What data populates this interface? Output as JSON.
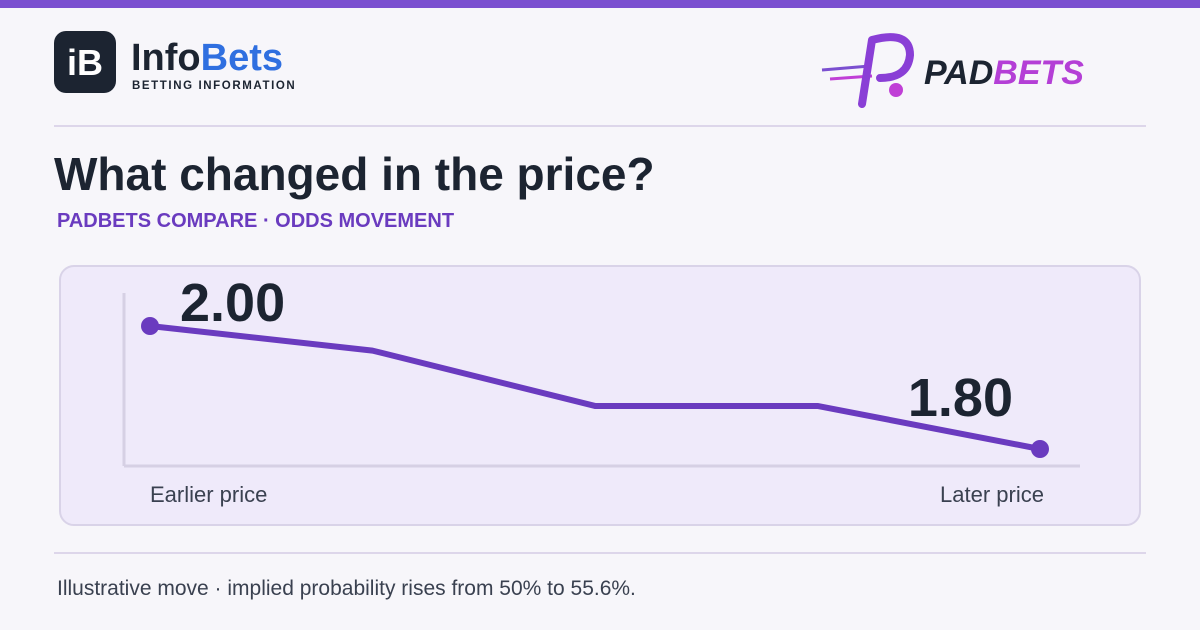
{
  "header": {
    "left_logo": {
      "icon": "iB",
      "name_part1": "Info",
      "name_part2": "Bets",
      "tagline": "BETTING INFORMATION"
    },
    "right_logo": {
      "name_part1": "PAD",
      "name_part2": "BETS"
    }
  },
  "chart_data": {
    "type": "line",
    "title": "What changed in the price?",
    "subtitle": "PADBETS COMPARE · ODDS MOVEMENT",
    "categories": [
      "Earlier price",
      null,
      null,
      null,
      "Later price"
    ],
    "values": [
      2.0,
      1.96,
      1.87,
      1.87,
      1.8
    ],
    "value_labels": [
      "2.00",
      null,
      null,
      null,
      "1.80"
    ],
    "color": "#6a3bbf"
  },
  "footer": {
    "note": "Illustrative move · implied probability rises from 50% to 55.6%."
  }
}
